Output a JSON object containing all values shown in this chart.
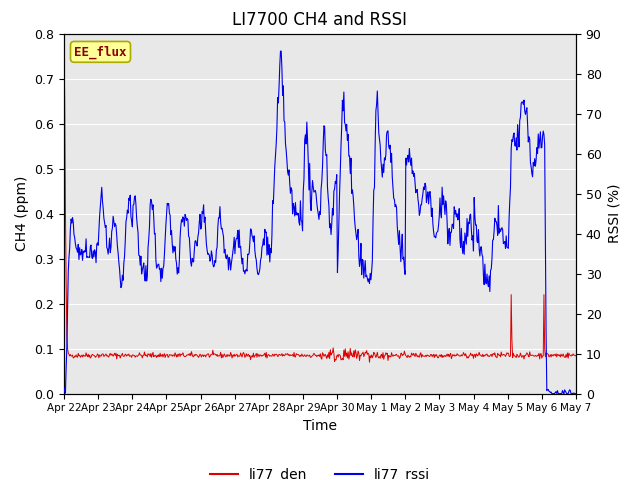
{
  "title": "LI7700 CH4 and RSSI",
  "xlabel": "Time",
  "ylabel_left": "CH4 (ppm)",
  "ylabel_right": "RSSI (%)",
  "ylim_left": [
    0.0,
    0.8
  ],
  "ylim_right": [
    0,
    90
  ],
  "yticks_left": [
    0.0,
    0.1,
    0.2,
    0.3,
    0.4,
    0.5,
    0.6,
    0.7,
    0.8
  ],
  "yticks_right": [
    0,
    10,
    20,
    30,
    40,
    50,
    60,
    70,
    80,
    90
  ],
  "xticklabels": [
    "Apr 22",
    "Apr 23",
    "Apr 24",
    "Apr 25",
    "Apr 26",
    "Apr 27",
    "Apr 28",
    "Apr 29",
    "Apr 30",
    "May 1",
    "May 2",
    "May 3",
    "May 4",
    "May 5",
    "May 6",
    "May 7"
  ],
  "color_red": "#dd0000",
  "color_blue": "#0000ee",
  "bg_color": "#e8e8e8",
  "annotation_text": "EE_flux",
  "annotation_color": "#8b0000",
  "annotation_bg": "#ffff99",
  "legend_entries": [
    "li77_den",
    "li77_rssi"
  ],
  "title_fontsize": 12,
  "label_fontsize": 10,
  "n_days": 15,
  "n_per_day": 48
}
